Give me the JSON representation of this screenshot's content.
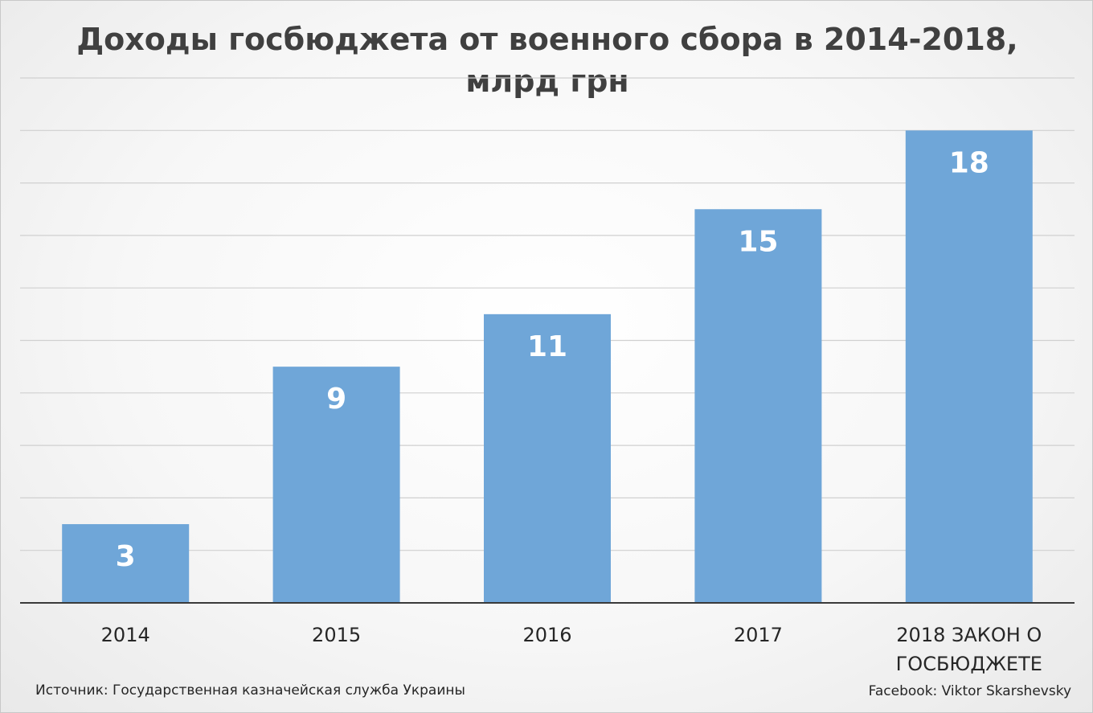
{
  "chart_data": {
    "type": "bar",
    "title": "Доходы госбюджета от военного сбора в 2014-2018,",
    "subtitle": "млрд грн",
    "categories": [
      [
        "2014"
      ],
      [
        "2015"
      ],
      [
        "2016"
      ],
      [
        "2017"
      ],
      [
        "2018 ЗАКОН О",
        "ГОСБЮДЖЕТЕ"
      ]
    ],
    "values": [
      3,
      9,
      11,
      15,
      18
    ],
    "ylim": [
      0,
      20
    ],
    "grid": true,
    "gridline_step": 2,
    "bar_color": "#6fa6d8",
    "label_color": "#ffffff",
    "source": "Источник: Государственная казначейская служба Украины",
    "credit": "Facebook: Viktor Skarshevsky"
  }
}
